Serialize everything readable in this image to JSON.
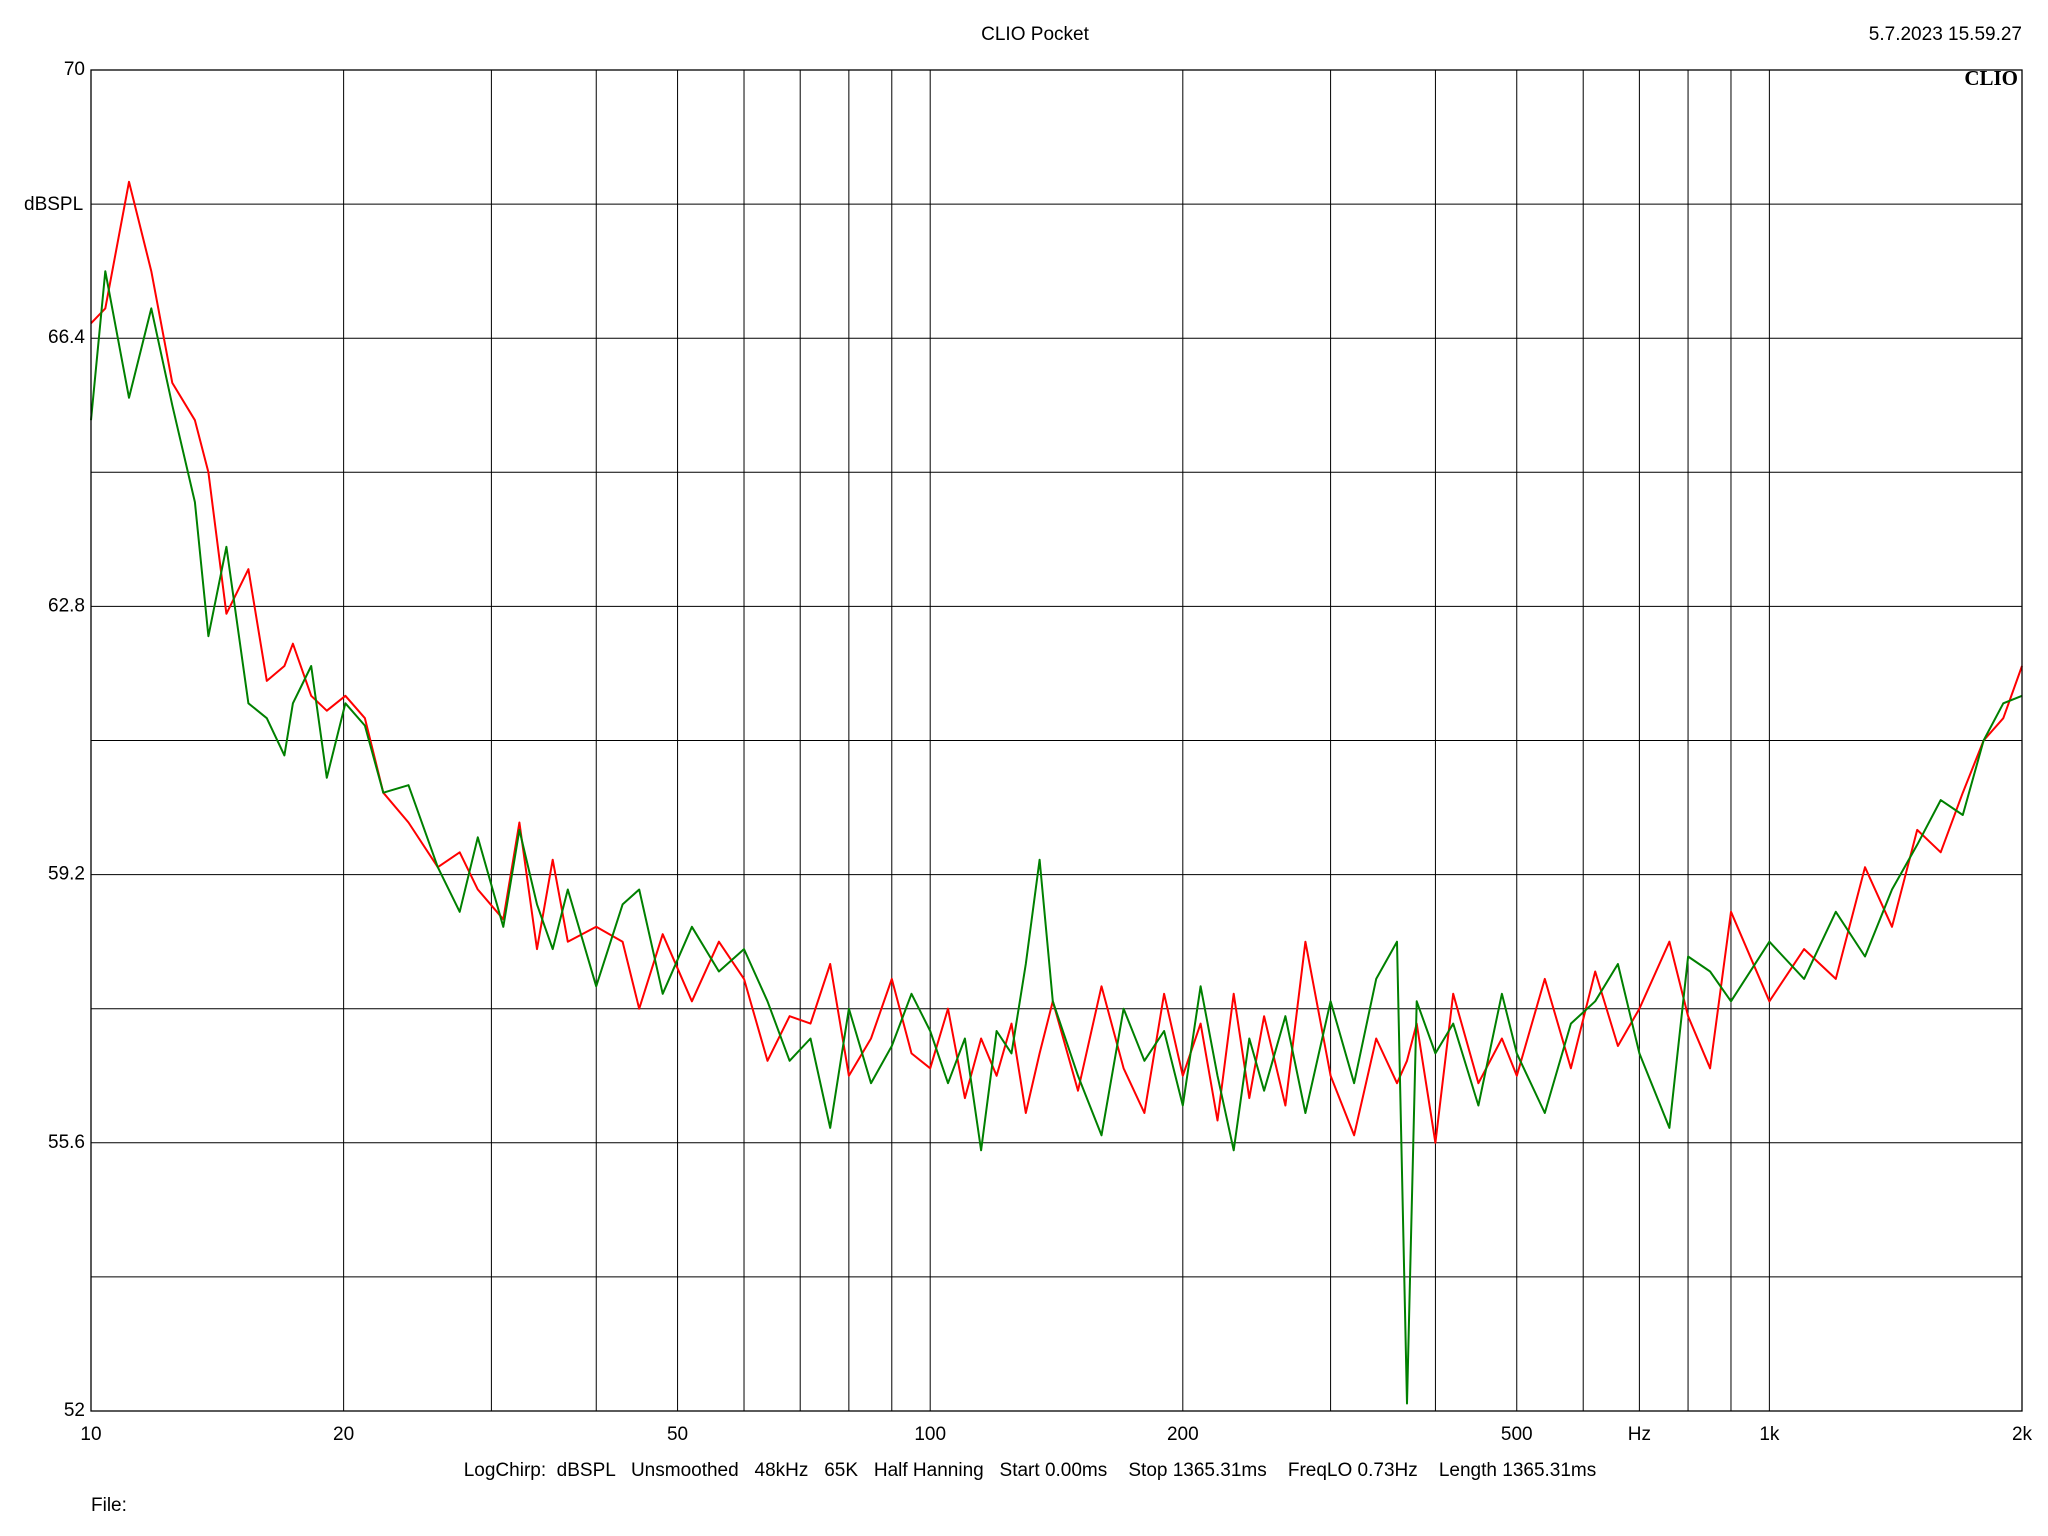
{
  "chart_data": {
    "type": "line",
    "title": "CLIO Pocket",
    "timestamp": "5.7.2023 15.59.27",
    "logo": "CLIO",
    "y_label": "dBSPL",
    "footer": "LogChirp:  dBSPL   Unsmoothed   48kHz   65K   Half Hanning   Start 0.00ms    Stop 1365.31ms    FreqLO 0.73Hz    Length 1365.31ms",
    "file_label": "File:",
    "xscale": "log",
    "xlim": [
      10,
      2000
    ],
    "xticks": [
      10,
      20,
      50,
      100,
      200,
      500,
      {
        "value": 700,
        "label": "Hz"
      },
      {
        "value": 1000,
        "label": "1k"
      },
      {
        "value": 2000,
        "label": "2k"
      }
    ],
    "xgrid": [
      30,
      40,
      60,
      70,
      80,
      90,
      300,
      400,
      600,
      800,
      900
    ],
    "ylim": [
      52,
      70
    ],
    "yticks": [
      52,
      55.6,
      59.2,
      62.8,
      66.4,
      70
    ],
    "ygrid": [
      53.8,
      57.4,
      61,
      64.6,
      68.2
    ],
    "grid": true,
    "x": [
      10,
      10.4,
      11.1,
      11.8,
      12.5,
      13.3,
      13.8,
      14.5,
      15.4,
      16.2,
      17.0,
      17.4,
      18.3,
      19.1,
      20.1,
      21.2,
      22.3,
      23.9,
      25.9,
      27.5,
      28.9,
      31.0,
      32.4,
      34,
      35.5,
      37,
      40,
      43,
      45,
      48,
      52,
      56,
      60,
      64,
      68,
      72,
      76,
      80,
      85,
      90,
      95,
      100,
      105,
      110,
      115,
      120,
      125,
      130,
      135,
      140,
      150,
      160,
      170,
      180,
      190,
      200,
      210,
      220,
      230,
      240,
      250,
      265,
      280,
      300,
      320,
      340,
      360,
      370,
      380,
      400,
      420,
      450,
      480,
      500,
      540,
      580,
      620,
      660,
      700,
      760,
      800,
      850,
      900,
      1000,
      1100,
      1200,
      1300,
      1400,
      1500,
      1600,
      1700,
      1800,
      1900,
      2000
    ],
    "series": [
      {
        "color": "#ff0000",
        "values": [
          66.6,
          66.8,
          68.5,
          67.3,
          65.8,
          65.3,
          64.6,
          62.7,
          63.3,
          61.8,
          62.0,
          62.3,
          61.6,
          61.4,
          61.6,
          61.3,
          60.3,
          59.9,
          59.3,
          59.5,
          59.0,
          58.6,
          59.9,
          58.2,
          59.4,
          58.3,
          58.5,
          58.3,
          57.4,
          58.4,
          57.5,
          58.3,
          57.8,
          56.7,
          57.3,
          57.2,
          58.0,
          56.5,
          57.0,
          57.8,
          56.8,
          56.6,
          57.4,
          56.2,
          57.0,
          56.5,
          57.2,
          56.0,
          56.8,
          57.5,
          56.3,
          57.7,
          56.6,
          56.0,
          57.6,
          56.5,
          57.2,
          55.9,
          57.6,
          56.2,
          57.3,
          56.1,
          58.3,
          56.5,
          55.7,
          57.0,
          56.4,
          56.7,
          57.2,
          55.6,
          57.6,
          56.4,
          57.0,
          56.5,
          57.8,
          56.6,
          57.9,
          56.9,
          57.4,
          58.3,
          57.3,
          56.6,
          58.7,
          57.5,
          58.2,
          57.8,
          59.3,
          58.5,
          59.8,
          59.5,
          60.3,
          61.0,
          61.3,
          62.0
        ]
      },
      {
        "color": "#008000",
        "values": [
          65.3,
          67.3,
          65.6,
          66.8,
          65.5,
          64.2,
          62.4,
          63.6,
          61.5,
          61.3,
          60.8,
          61.5,
          62.0,
          60.5,
          61.5,
          61.2,
          60.3,
          60.4,
          59.3,
          58.7,
          59.7,
          58.5,
          59.8,
          58.8,
          58.2,
          59.0,
          57.7,
          58.8,
          59.0,
          57.6,
          58.5,
          57.9,
          58.2,
          57.5,
          56.7,
          57.0,
          55.8,
          57.4,
          56.4,
          56.9,
          57.6,
          57.1,
          56.4,
          57.0,
          55.5,
          57.1,
          56.8,
          58.0,
          59.4,
          57.5,
          56.5,
          55.7,
          57.4,
          56.7,
          57.1,
          56.1,
          57.7,
          56.5,
          55.5,
          57.0,
          56.3,
          57.3,
          56.0,
          57.5,
          56.4,
          57.8,
          58.3,
          52.1,
          57.5,
          56.8,
          57.2,
          56.1,
          57.6,
          56.8,
          56.0,
          57.2,
          57.5,
          58.0,
          56.8,
          55.8,
          58.1,
          57.9,
          57.5,
          58.3,
          57.8,
          58.7,
          58.1,
          59.0,
          59.6,
          60.2,
          60.0,
          61.0,
          61.5,
          61.6
        ]
      }
    ]
  }
}
